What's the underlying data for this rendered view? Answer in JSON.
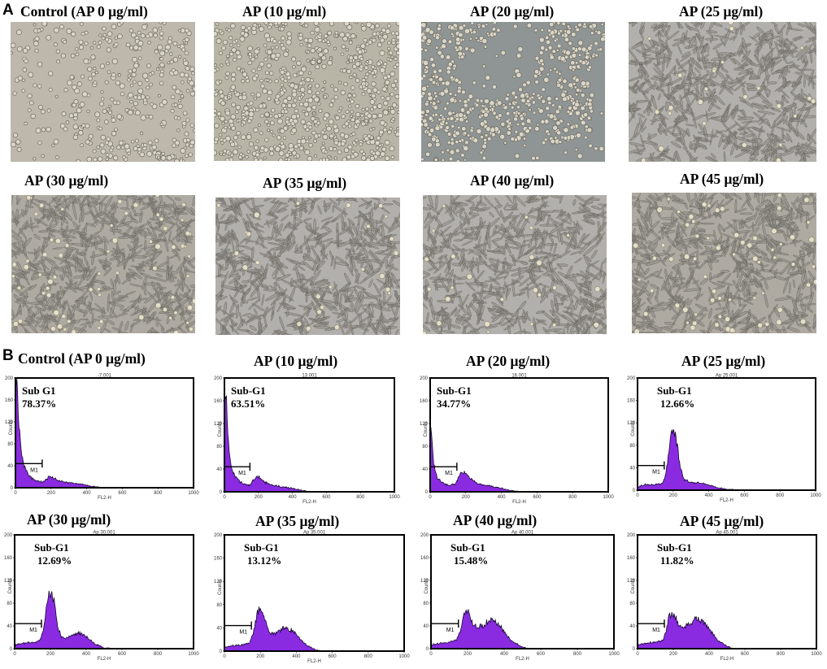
{
  "panels": {
    "a": "A",
    "b": "B"
  },
  "colors": {
    "fill": "#8a2be2",
    "frame": "#000000"
  },
  "micrographs": [
    {
      "title": "Control (AP 0 μg/ml)",
      "style": "round-sparse"
    },
    {
      "title": "AP (10 μg/ml)",
      "style": "round-dense"
    },
    {
      "title": "AP (20 μg/ml)",
      "style": "round-clusters"
    },
    {
      "title": "AP (25 μg/ml)",
      "style": "spindle"
    },
    {
      "title": "AP (30 μg/ml)",
      "style": "spindle-mixed"
    },
    {
      "title": "AP (35 μg/ml)",
      "style": "spindle"
    },
    {
      "title": "AP (40 μg/ml)",
      "style": "spindle"
    },
    {
      "title": "AP (45 μg/ml)",
      "style": "spindle-mixed"
    }
  ],
  "chart_data": [
    {
      "type": "area",
      "title": "Control (AP 0 μg/ml)",
      "file": "-7.001",
      "xlabel": "FL2-H",
      "ylabel": "Counts",
      "xlim": [
        0,
        1000
      ],
      "ylim": [
        0,
        200
      ],
      "xticks": [
        0,
        200,
        400,
        600,
        800,
        1000
      ],
      "yticks": [
        0,
        40,
        80,
        120,
        160,
        200
      ],
      "gate_label": "M1",
      "gate": [
        0,
        150
      ],
      "region_label": "Sub G1",
      "percent": "78.37%",
      "profile": [
        [
          0,
          130
        ],
        [
          5,
          200
        ],
        [
          10,
          190
        ],
        [
          15,
          150
        ],
        [
          20,
          110
        ],
        [
          30,
          75
        ],
        [
          40,
          50
        ],
        [
          55,
          35
        ],
        [
          70,
          25
        ],
        [
          90,
          18
        ],
        [
          110,
          14
        ],
        [
          130,
          12
        ],
        [
          150,
          10
        ],
        [
          170,
          14
        ],
        [
          190,
          20
        ],
        [
          210,
          19
        ],
        [
          240,
          13
        ],
        [
          280,
          10
        ],
        [
          330,
          8
        ],
        [
          380,
          6
        ],
        [
          420,
          3
        ],
        [
          460,
          1
        ],
        [
          500,
          0
        ],
        [
          1000,
          0
        ]
      ]
    },
    {
      "type": "area",
      "title": "AP (10 μg/ml)",
      "file": "13.001",
      "xlabel": "FL2-H",
      "ylabel": "Counts",
      "xlim": [
        0,
        1000
      ],
      "ylim": [
        0,
        200
      ],
      "xticks": [
        0,
        200,
        400,
        600,
        800,
        1000
      ],
      "yticks": [
        0,
        40,
        80,
        120,
        160,
        200
      ],
      "gate_label": "M1",
      "gate": [
        0,
        150
      ],
      "region_label": "Sub-G1",
      "percent": "63.51%",
      "profile": [
        [
          0,
          120
        ],
        [
          5,
          200
        ],
        [
          10,
          170
        ],
        [
          15,
          130
        ],
        [
          20,
          95
        ],
        [
          30,
          65
        ],
        [
          40,
          45
        ],
        [
          55,
          32
        ],
        [
          70,
          24
        ],
        [
          90,
          18
        ],
        [
          110,
          14
        ],
        [
          130,
          12
        ],
        [
          150,
          12
        ],
        [
          170,
          20
        ],
        [
          190,
          27
        ],
        [
          210,
          25
        ],
        [
          240,
          17
        ],
        [
          280,
          12
        ],
        [
          330,
          9
        ],
        [
          380,
          7
        ],
        [
          430,
          4
        ],
        [
          480,
          1
        ],
        [
          520,
          0
        ],
        [
          1000,
          0
        ]
      ]
    },
    {
      "type": "area",
      "title": "AP (20 μg/ml)",
      "file": "16.001",
      "xlabel": "FL2-H",
      "ylabel": "Counts",
      "xlim": [
        0,
        1000
      ],
      "ylim": [
        0,
        200
      ],
      "xticks": [
        0,
        200,
        400,
        600,
        800,
        1000
      ],
      "yticks": [
        0,
        40,
        80,
        120,
        160,
        200
      ],
      "gate_label": "M1",
      "gate": [
        0,
        150
      ],
      "region_label": "Sub-G1",
      "percent": "34.77%",
      "profile": [
        [
          0,
          60
        ],
        [
          5,
          120
        ],
        [
          10,
          95
        ],
        [
          15,
          70
        ],
        [
          20,
          50
        ],
        [
          30,
          35
        ],
        [
          40,
          25
        ],
        [
          60,
          18
        ],
        [
          80,
          14
        ],
        [
          100,
          12
        ],
        [
          120,
          12
        ],
        [
          140,
          14
        ],
        [
          160,
          25
        ],
        [
          180,
          35
        ],
        [
          200,
          32
        ],
        [
          220,
          25
        ],
        [
          260,
          15
        ],
        [
          300,
          12
        ],
        [
          340,
          10
        ],
        [
          380,
          8
        ],
        [
          430,
          4
        ],
        [
          480,
          1
        ],
        [
          520,
          0
        ],
        [
          1000,
          0
        ]
      ]
    },
    {
      "type": "area",
      "title": "AP (25 μg/ml)",
      "file": "Ap 25.001",
      "xlabel": "FL2-H",
      "ylabel": "Counts",
      "xlim": [
        0,
        1000
      ],
      "ylim": [
        0,
        200
      ],
      "xticks": [
        0,
        200,
        400,
        600,
        800,
        1000
      ],
      "yticks": [
        0,
        40,
        80,
        120,
        160,
        200
      ],
      "gate_label": "M1",
      "gate": [
        0,
        150
      ],
      "region_label": "Sub-G1",
      "percent": "12.66%",
      "profile": [
        [
          0,
          5
        ],
        [
          20,
          8
        ],
        [
          50,
          10
        ],
        [
          100,
          10
        ],
        [
          140,
          12
        ],
        [
          160,
          30
        ],
        [
          175,
          70
        ],
        [
          190,
          100
        ],
        [
          205,
          105
        ],
        [
          220,
          85
        ],
        [
          240,
          40
        ],
        [
          260,
          20
        ],
        [
          290,
          14
        ],
        [
          330,
          13
        ],
        [
          370,
          12
        ],
        [
          410,
          8
        ],
        [
          460,
          4
        ],
        [
          520,
          1
        ],
        [
          560,
          0
        ],
        [
          1000,
          0
        ]
      ]
    },
    {
      "type": "area",
      "title": "AP (30 μg/ml)",
      "file": "Ap 30.001",
      "xlabel": "FL2-H",
      "ylabel": "Counts",
      "xlim": [
        0,
        1000
      ],
      "ylim": [
        0,
        200
      ],
      "xticks": [
        0,
        200,
        400,
        600,
        800,
        1000
      ],
      "yticks": [
        0,
        40,
        80,
        120,
        160,
        200
      ],
      "gate_label": "M1",
      "gate": [
        0,
        150
      ],
      "region_label": "Sub-G1",
      "percent": "12.69%",
      "profile": [
        [
          0,
          5
        ],
        [
          20,
          8
        ],
        [
          60,
          10
        ],
        [
          110,
          11
        ],
        [
          140,
          14
        ],
        [
          160,
          30
        ],
        [
          175,
          70
        ],
        [
          190,
          95
        ],
        [
          205,
          100
        ],
        [
          220,
          85
        ],
        [
          240,
          40
        ],
        [
          260,
          22
        ],
        [
          290,
          18
        ],
        [
          320,
          22
        ],
        [
          350,
          28
        ],
        [
          380,
          26
        ],
        [
          410,
          18
        ],
        [
          450,
          8
        ],
        [
          500,
          2
        ],
        [
          540,
          0
        ],
        [
          1000,
          0
        ]
      ]
    },
    {
      "type": "area",
      "title": "AP (35 μg/ml)",
      "file": "Ap 35.001",
      "xlabel": "FL2-H",
      "ylabel": "Counts",
      "xlim": [
        0,
        1000
      ],
      "ylim": [
        0,
        200
      ],
      "xticks": [
        0,
        200,
        400,
        600,
        800,
        1000
      ],
      "yticks": [
        0,
        40,
        80,
        120,
        160,
        200
      ],
      "gate_label": "M1",
      "gate": [
        0,
        150
      ],
      "region_label": "Sub-G1",
      "percent": "13.12%",
      "profile": [
        [
          0,
          5
        ],
        [
          20,
          8
        ],
        [
          60,
          10
        ],
        [
          110,
          11
        ],
        [
          140,
          14
        ],
        [
          160,
          30
        ],
        [
          175,
          55
        ],
        [
          190,
          72
        ],
        [
          205,
          75
        ],
        [
          220,
          60
        ],
        [
          240,
          40
        ],
        [
          260,
          30
        ],
        [
          290,
          30
        ],
        [
          320,
          38
        ],
        [
          350,
          40
        ],
        [
          380,
          35
        ],
        [
          410,
          25
        ],
        [
          450,
          12
        ],
        [
          500,
          3
        ],
        [
          540,
          0
        ],
        [
          1000,
          0
        ]
      ]
    },
    {
      "type": "area",
      "title": "AP (40 μg/ml)",
      "file": "Ap 40.001",
      "xlabel": "FL2-H",
      "ylabel": "Counts",
      "xlim": [
        0,
        1000
      ],
      "ylim": [
        0,
        200
      ],
      "xticks": [
        0,
        200,
        400,
        600,
        800,
        1000
      ],
      "yticks": [
        0,
        40,
        80,
        120,
        160,
        200
      ],
      "gate_label": "M1",
      "gate": [
        0,
        150
      ],
      "region_label": "Sub-G1",
      "percent": "15.48%",
      "profile": [
        [
          0,
          5
        ],
        [
          20,
          8
        ],
        [
          60,
          10
        ],
        [
          110,
          12
        ],
        [
          140,
          15
        ],
        [
          160,
          30
        ],
        [
          175,
          55
        ],
        [
          190,
          65
        ],
        [
          205,
          62
        ],
        [
          225,
          45
        ],
        [
          250,
          38
        ],
        [
          280,
          40
        ],
        [
          310,
          48
        ],
        [
          340,
          50
        ],
        [
          370,
          42
        ],
        [
          400,
          30
        ],
        [
          440,
          14
        ],
        [
          490,
          4
        ],
        [
          530,
          0
        ],
        [
          1000,
          0
        ]
      ]
    },
    {
      "type": "area",
      "title": "AP (45 μg/ml)",
      "file": "Ap 45.001",
      "xlabel": "FL2-H",
      "ylabel": "Counts",
      "xlim": [
        0,
        1000
      ],
      "ylim": [
        0,
        200
      ],
      "xticks": [
        0,
        200,
        400,
        600,
        800,
        1000
      ],
      "yticks": [
        0,
        40,
        80,
        120,
        160,
        200
      ],
      "gate_label": "M1",
      "gate": [
        0,
        150
      ],
      "region_label": "Sub-G1",
      "percent": "11.82%",
      "profile": [
        [
          0,
          5
        ],
        [
          20,
          8
        ],
        [
          60,
          10
        ],
        [
          110,
          12
        ],
        [
          140,
          15
        ],
        [
          160,
          30
        ],
        [
          175,
          55
        ],
        [
          190,
          62
        ],
        [
          210,
          58
        ],
        [
          230,
          42
        ],
        [
          260,
          38
        ],
        [
          290,
          44
        ],
        [
          320,
          52
        ],
        [
          350,
          50
        ],
        [
          380,
          42
        ],
        [
          410,
          30
        ],
        [
          450,
          14
        ],
        [
          500,
          4
        ],
        [
          540,
          0
        ],
        [
          1000,
          0
        ]
      ]
    }
  ]
}
